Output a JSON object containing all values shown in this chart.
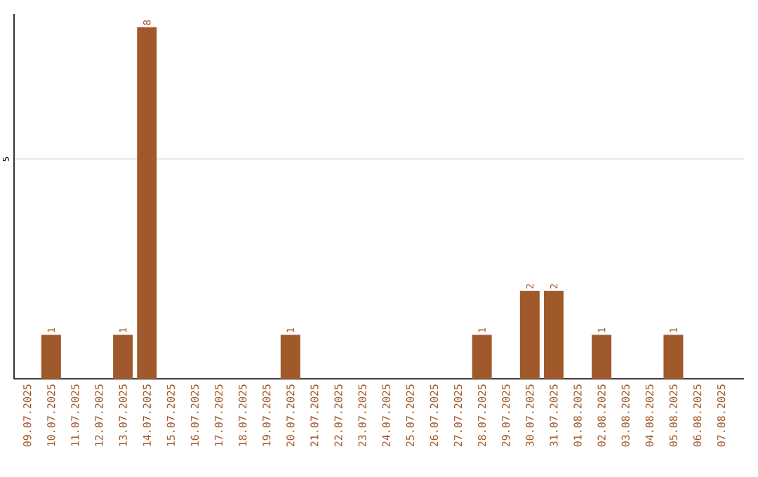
{
  "chart_data": {
    "type": "bar",
    "categories": [
      "09.07.2025",
      "10.07.2025",
      "11.07.2025",
      "12.07.2025",
      "13.07.2025",
      "14.07.2025",
      "15.07.2025",
      "16.07.2025",
      "17.07.2025",
      "18.07.2025",
      "19.07.2025",
      "20.07.2025",
      "21.07.2025",
      "22.07.2025",
      "23.07.2025",
      "24.07.2025",
      "25.07.2025",
      "26.07.2025",
      "27.07.2025",
      "28.07.2025",
      "29.07.2025",
      "30.07.2025",
      "31.07.2025",
      "01.08.2025",
      "02.08.2025",
      "03.08.2025",
      "04.08.2025",
      "05.08.2025",
      "06.08.2025",
      "07.08.2025"
    ],
    "values": [
      0,
      1,
      0,
      0,
      1,
      8,
      0,
      0,
      0,
      0,
      0,
      1,
      0,
      0,
      0,
      0,
      0,
      0,
      0,
      1,
      0,
      2,
      2,
      0,
      1,
      0,
      0,
      1,
      0,
      0
    ],
    "value_labels": [
      null,
      "1",
      null,
      null,
      "1",
      "8",
      null,
      null,
      null,
      null,
      null,
      "1",
      null,
      null,
      null,
      null,
      null,
      null,
      null,
      "1",
      null,
      "2",
      "2",
      null,
      "1",
      null,
      null,
      "1",
      null,
      null
    ],
    "color": "#a0592b",
    "ylim": [
      0,
      8.3
    ],
    "yticks": [
      5
    ],
    "grid": "y"
  }
}
